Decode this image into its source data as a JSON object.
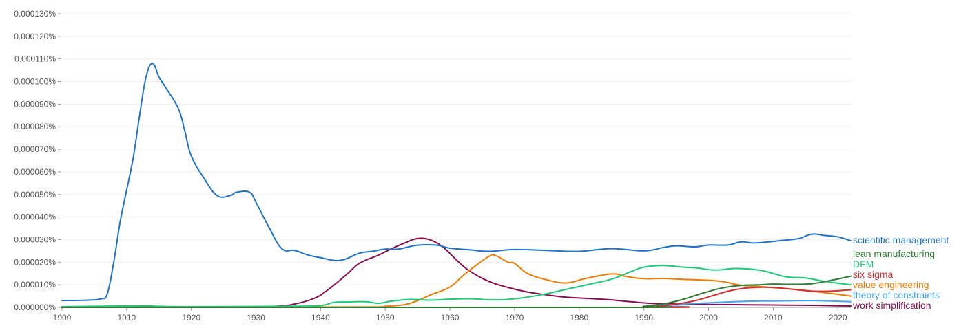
{
  "chart_data": {
    "type": "line",
    "title": "",
    "xlabel": "",
    "ylabel": "",
    "xlim": [
      1900,
      2022
    ],
    "ylim": [
      0,
      0.00013
    ],
    "grid": true,
    "legend_position": "right, at line ends",
    "x_ticks": [
      "1900",
      "1910",
      "1920",
      "1930",
      "1940",
      "1950",
      "1960",
      "1970",
      "1980",
      "1990",
      "2000",
      "2010",
      "2020"
    ],
    "y_ticks": [
      "0.000000%",
      "0.000010%",
      "0.000020%",
      "0.000030%",
      "0.000040%",
      "0.000050%",
      "0.000060%",
      "0.000070%",
      "0.000080%",
      "0.000090%",
      "0.000100%",
      "0.000110%",
      "0.000120%",
      "0.000130%"
    ],
    "series": [
      {
        "name": "scientific management",
        "color": "#1e73c8",
        "x": [
          1900,
          1904,
          1906,
          1907,
          1908,
          1909,
          1910,
          1911,
          1912,
          1913,
          1914,
          1915,
          1916,
          1918,
          1919,
          1920,
          1922,
          1924,
          1926,
          1927,
          1929,
          1930,
          1932,
          1934,
          1936,
          1938,
          1940,
          1943,
          1946,
          1948,
          1950,
          1952,
          1955,
          1958,
          1960,
          1963,
          1966,
          1970,
          1975,
          1980,
          1985,
          1990,
          1993,
          1995,
          1998,
          2000,
          2003,
          2005,
          2007,
          2010,
          2012,
          2014,
          2016,
          2018,
          2020,
          2022
        ],
        "y": [
          3e-06,
          3.2e-06,
          3.8e-06,
          6e-06,
          2e-05,
          3.8e-05,
          5.2e-05,
          6.6e-05,
          8.5e-05,
          0.000102,
          0.000108,
          0.000102,
          9.75e-05,
          8.8e-05,
          7.8e-05,
          6.7e-05,
          5.7e-05,
          4.95e-05,
          4.95e-05,
          5.1e-05,
          5.1e-05,
          4.65e-05,
          3.55e-05,
          2.6e-05,
          2.52e-05,
          2.32e-05,
          2.2e-05,
          2.08e-05,
          2.4e-05,
          2.48e-05,
          2.58e-05,
          2.58e-05,
          2.75e-05,
          2.75e-05,
          2.62e-05,
          2.55e-05,
          2.48e-05,
          2.56e-05,
          2.52e-05,
          2.48e-05,
          2.6e-05,
          2.5e-05,
          2.65e-05,
          2.72e-05,
          2.68e-05,
          2.76e-05,
          2.76e-05,
          2.9e-05,
          2.85e-05,
          2.92e-05,
          2.98e-05,
          3.05e-05,
          3.24e-05,
          3.18e-05,
          3.12e-05,
          2.95e-05
        ]
      },
      {
        "name": "lean manufacturing",
        "color": "#2e7d32",
        "x": [
          1900,
          1985,
          1990,
          1993,
          1996,
          1999,
          2002,
          2005,
          2008,
          2010,
          2013,
          2016,
          2019,
          2022
        ],
        "y": [
          0,
          0,
          5e-07,
          1.5e-06,
          3.5e-06,
          6.2e-06,
          8.5e-06,
          9.7e-06,
          1e-05,
          1.03e-05,
          1.02e-05,
          1.05e-05,
          1.2e-05,
          1.38e-05
        ]
      },
      {
        "name": "DFM",
        "color": "#1fc97a",
        "x": [
          1900,
          1912,
          1915,
          1920,
          1935,
          1940,
          1942,
          1944,
          1947,
          1949,
          1951,
          1954,
          1957,
          1960,
          1963,
          1967,
          1970,
          1974,
          1978,
          1982,
          1985,
          1988,
          1990,
          1993,
          1996,
          1998,
          2001,
          2004,
          2007,
          2009,
          2012,
          2015,
          2018,
          2022
        ],
        "y": [
          3e-07,
          7e-07,
          5e-07,
          3e-07,
          5e-07,
          8e-07,
          2.2e-06,
          2.4e-06,
          2.5e-06,
          1.8e-06,
          2.8e-06,
          3.5e-06,
          3.2e-06,
          3.6e-06,
          3.8e-06,
          3.3e-06,
          3.8e-06,
          5.5e-06,
          8e-06,
          1.05e-05,
          1.25e-05,
          1.58e-05,
          1.78e-05,
          1.85e-05,
          1.78e-05,
          1.75e-05,
          1.65e-05,
          1.72e-05,
          1.68e-05,
          1.58e-05,
          1.35e-05,
          1.3e-05,
          1.15e-05,
          1e-05
        ]
      },
      {
        "name": "six sigma",
        "color": "#d32f2f",
        "x": [
          1900,
          1988,
          1992,
          1995,
          1998,
          2001,
          2004,
          2007,
          2010,
          2013,
          2016,
          2019,
          2022
        ],
        "y": [
          0,
          0,
          4e-07,
          1.5e-06,
          3e-06,
          5.5e-06,
          7.8e-06,
          8.8e-06,
          8.8e-06,
          8e-06,
          7.2e-06,
          7.2e-06,
          7.8e-06
        ]
      },
      {
        "name": "value engineering",
        "color": "#ef7c00",
        "x": [
          1900,
          1945,
          1950,
          1953,
          1955,
          1957,
          1960,
          1962,
          1964,
          1966,
          1967,
          1969,
          1970,
          1972,
          1975,
          1978,
          1981,
          1985,
          1987,
          1990,
          1993,
          1996,
          1999,
          2002,
          2005,
          2008,
          2011,
          2014,
          2017,
          2020,
          2022
        ],
        "y": [
          0,
          2e-07,
          5e-07,
          1.2e-06,
          3e-06,
          5.5e-06,
          9e-06,
          1.4e-05,
          1.85e-05,
          2.25e-05,
          2.3e-05,
          2e-05,
          1.95e-05,
          1.5e-05,
          1.22e-05,
          1.08e-05,
          1.28e-05,
          1.48e-05,
          1.38e-05,
          1.27e-05,
          1.28e-05,
          1.24e-05,
          1.21e-05,
          1.15e-05,
          9.8e-06,
          9.2e-06,
          8.5e-06,
          7.8e-06,
          6.8e-06,
          5.8e-06,
          5e-06
        ]
      },
      {
        "name": "theory of constraints",
        "color": "#42a5f5",
        "x": [
          1900,
          1988,
          1992,
          1996,
          2000,
          2004,
          2008,
          2012,
          2016,
          2019,
          2022
        ],
        "y": [
          0,
          0,
          8e-07,
          1.5e-06,
          2e-06,
          2.5e-06,
          2.8e-06,
          2.9e-06,
          3e-06,
          2.8e-06,
          2.5e-06
        ]
      },
      {
        "name": "work simplification",
        "color": "#880e4f",
        "x": [
          1900,
          1925,
          1933,
          1936,
          1939,
          1941,
          1944,
          1946,
          1949,
          1951,
          1953,
          1955,
          1957,
          1959,
          1961,
          1963,
          1966,
          1969,
          1972,
          1975,
          1978,
          1981,
          1985,
          1988,
          1991,
          1994,
          1997,
          2000,
          2004,
          2008,
          2012,
          2016,
          2020,
          2022
        ],
        "y": [
          0,
          3e-07,
          5e-07,
          1.5e-06,
          4e-06,
          7.5e-06,
          1.45e-05,
          1.95e-05,
          2.32e-05,
          2.6e-05,
          2.85e-05,
          3.05e-05,
          2.98e-05,
          2.65e-05,
          2.1e-05,
          1.62e-05,
          1.15e-05,
          8.8e-06,
          6.8e-06,
          5.5e-06,
          4.5e-06,
          4e-06,
          3.3e-06,
          2.5e-06,
          1.8e-06,
          1.6e-06,
          1.5e-06,
          1.3e-06,
          1.2e-06,
          1.1e-06,
          1e-06,
          9e-07,
          7e-07,
          6e-07
        ]
      }
    ]
  }
}
